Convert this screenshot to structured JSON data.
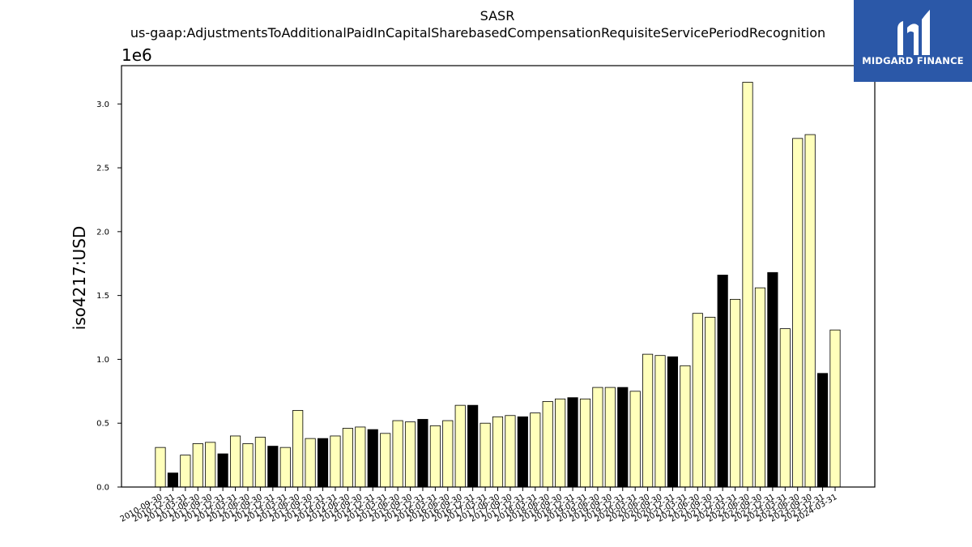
{
  "brand": {
    "name": "MIDGARD FINANCE",
    "bg_color": "#2b58a8"
  },
  "chart_data": {
    "type": "bar",
    "title": "SASR",
    "subtitle": "us-gaap:AdjustmentsToAdditionalPaidInCapitalSharebasedCompensationRequisiteServicePeriodRecognition",
    "xlabel": "",
    "ylabel": "iso4217:USD",
    "y_offset_label": "1e6",
    "ylim": [
      0,
      3.3
    ],
    "yticks": [
      0.0,
      0.5,
      1.0,
      1.5,
      2.0,
      2.5,
      3.0
    ],
    "ytick_labels": [
      "0.0",
      "0.5",
      "1.0",
      "1.5",
      "2.0",
      "2.5",
      "3.0"
    ],
    "grid": false,
    "colors": {
      "light": "#ffffbb",
      "dark": "#000000",
      "edge": "#000000"
    },
    "categories": [
      "2010-09-30",
      "2010-12-31",
      "2011-03-31",
      "2011-06-30",
      "2011-09-30",
      "2011-12-31",
      "2012-03-31",
      "2012-06-30",
      "2012-09-30",
      "2012-12-31",
      "2013-03-31",
      "2013-06-30",
      "2013-09-30",
      "2013-12-31",
      "2014-03-31",
      "2014-06-30",
      "2014-09-30",
      "2014-12-31",
      "2015-03-31",
      "2015-06-30",
      "2015-09-30",
      "2015-12-31",
      "2016-03-31",
      "2016-06-30",
      "2016-09-30",
      "2016-12-31",
      "2017-03-31",
      "2017-06-30",
      "2017-09-30",
      "2017-12-31",
      "2018-03-31",
      "2018-06-30",
      "2018-09-30",
      "2018-12-31",
      "2019-03-31",
      "2019-06-30",
      "2019-09-30",
      "2019-12-31",
      "2020-03-31",
      "2020-06-30",
      "2020-09-30",
      "2020-12-31",
      "2021-03-31",
      "2021-06-30",
      "2021-09-30",
      "2021-12-31",
      "2022-03-31",
      "2022-06-30",
      "2022-09-30",
      "2022-12-31",
      "2023-03-31",
      "2023-06-30",
      "2023-09-30",
      "2023-12-31",
      "2024-03-31"
    ],
    "values": [
      0.31,
      0.11,
      0.25,
      0.34,
      0.35,
      0.26,
      0.4,
      0.34,
      0.39,
      0.32,
      0.31,
      0.6,
      0.38,
      0.38,
      0.4,
      0.46,
      0.47,
      0.45,
      0.42,
      0.52,
      0.51,
      0.53,
      0.48,
      0.52,
      0.64,
      0.64,
      0.5,
      0.55,
      0.56,
      0.55,
      0.58,
      0.67,
      0.69,
      0.7,
      0.69,
      0.78,
      0.78,
      0.78,
      0.75,
      1.04,
      1.03,
      1.02,
      0.95,
      1.36,
      1.33,
      1.66,
      1.47,
      3.17,
      1.56,
      1.68,
      1.24,
      2.73,
      2.76,
      0.89,
      1.23
    ],
    "bar_color_keys": [
      "light",
      "dark",
      "light",
      "light",
      "light",
      "dark",
      "light",
      "light",
      "light",
      "dark",
      "light",
      "light",
      "light",
      "dark",
      "light",
      "light",
      "light",
      "dark",
      "light",
      "light",
      "light",
      "dark",
      "light",
      "light",
      "light",
      "dark",
      "light",
      "light",
      "light",
      "dark",
      "light",
      "light",
      "light",
      "dark",
      "light",
      "light",
      "light",
      "dark",
      "light",
      "light",
      "light",
      "dark",
      "light",
      "light",
      "light",
      "dark",
      "light",
      "light",
      "light",
      "dark",
      "light",
      "light",
      "light",
      "dark",
      "light"
    ]
  }
}
